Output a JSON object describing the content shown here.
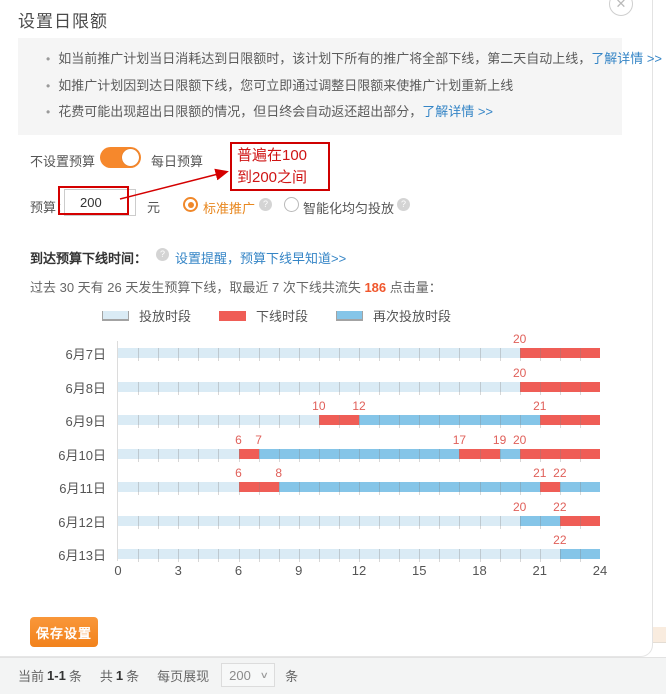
{
  "dialog": {
    "title": "设置日限额",
    "close_glyph": "✕"
  },
  "notices": [
    {
      "text": "如当前推广计划当日消耗达到日限额时，该计划下所有的推广将全部下线，第二天自动上线，",
      "link": "了解详情 >>"
    },
    {
      "text": "如推广计划因到达日限额下线，您可立即通过调整日限额来使推广计划重新上线",
      "link": ""
    },
    {
      "text": "花费可能出现超出日限额的情况，但日终会自动返还超出部分，",
      "link": "了解详情 >>"
    }
  ],
  "budget": {
    "toggle_left_label": "不设置预算",
    "toggle_right_label": "每日预算",
    "field_label": "预算：",
    "value": "200",
    "unit": "元",
    "radio_standard": "标准推广",
    "radio_smart": "智能化均匀投放",
    "annotation_line1": "普遍在100",
    "annotation_line2": "到200之间",
    "annotation_color": "#cf0000"
  },
  "offline_section": {
    "label": "到达预算下线时间：",
    "reminder_link": "设置提醒，预算下线早知道>>",
    "stats_prefix": "过去 30 天有 26 天发生预算下线，取最近 7 次下线共流失 ",
    "stats_value": "186",
    "stats_suffix": " 点击量："
  },
  "legend": [
    {
      "label": "投放时段",
      "color": "#daebf5",
      "bracket": true
    },
    {
      "label": "下线时段",
      "color": "#ef5d56",
      "bracket": false
    },
    {
      "label": "再次投放时段",
      "color": "#85c5e8",
      "bracket": true
    }
  ],
  "chart_data": {
    "type": "timeline-bars",
    "x_range": [
      0,
      24
    ],
    "x_ticks": [
      0,
      3,
      6,
      9,
      12,
      15,
      18,
      21,
      24
    ],
    "colors": {
      "serve": "#daebf5",
      "offline": "#ef5d56",
      "reserve": "#85c5e8"
    },
    "label_color": "#e0605a",
    "rows": [
      {
        "day": "6月7日",
        "segments": [
          {
            "kind": "serve",
            "start": 0,
            "end": 20
          },
          {
            "kind": "offline",
            "start": 20,
            "end": 24
          }
        ],
        "labels": [
          20
        ]
      },
      {
        "day": "6月8日",
        "segments": [
          {
            "kind": "serve",
            "start": 0,
            "end": 20
          },
          {
            "kind": "offline",
            "start": 20,
            "end": 24
          }
        ],
        "labels": [
          20
        ]
      },
      {
        "day": "6月9日",
        "segments": [
          {
            "kind": "serve",
            "start": 0,
            "end": 10
          },
          {
            "kind": "offline",
            "start": 10,
            "end": 12
          },
          {
            "kind": "reserve",
            "start": 12,
            "end": 21
          },
          {
            "kind": "offline",
            "start": 21,
            "end": 24
          }
        ],
        "labels": [
          10,
          12,
          21
        ]
      },
      {
        "day": "6月10日",
        "segments": [
          {
            "kind": "serve",
            "start": 0,
            "end": 6
          },
          {
            "kind": "offline",
            "start": 6,
            "end": 7
          },
          {
            "kind": "reserve",
            "start": 7,
            "end": 17
          },
          {
            "kind": "offline",
            "start": 17,
            "end": 19
          },
          {
            "kind": "reserve",
            "start": 19,
            "end": 20
          },
          {
            "kind": "offline",
            "start": 20,
            "end": 24
          }
        ],
        "labels": [
          6,
          7,
          17,
          19,
          20
        ]
      },
      {
        "day": "6月11日",
        "segments": [
          {
            "kind": "serve",
            "start": 0,
            "end": 6
          },
          {
            "kind": "offline",
            "start": 6,
            "end": 8
          },
          {
            "kind": "reserve",
            "start": 8,
            "end": 21
          },
          {
            "kind": "offline",
            "start": 21,
            "end": 22
          },
          {
            "kind": "reserve",
            "start": 22,
            "end": 24
          }
        ],
        "labels": [
          6,
          8,
          21,
          22
        ]
      },
      {
        "day": "6月12日",
        "segments": [
          {
            "kind": "serve",
            "start": 0,
            "end": 20
          },
          {
            "kind": "reserve",
            "start": 20,
            "end": 22
          },
          {
            "kind": "offline",
            "start": 22,
            "end": 24
          }
        ],
        "labels": [
          20,
          22
        ]
      },
      {
        "day": "6月13日",
        "segments": [
          {
            "kind": "serve",
            "start": 0,
            "end": 22
          },
          {
            "kind": "reserve",
            "start": 22,
            "end": 24
          }
        ],
        "labels": [
          22
        ]
      }
    ]
  },
  "save_button": "保存设置",
  "pager": {
    "current_label": "当前",
    "current_value": "1-1",
    "unit1": "条",
    "total_label": "共",
    "total_value": "1",
    "unit2": "条",
    "per_page_label": "每页展现",
    "per_page_value": "200",
    "unit3": "条"
  }
}
